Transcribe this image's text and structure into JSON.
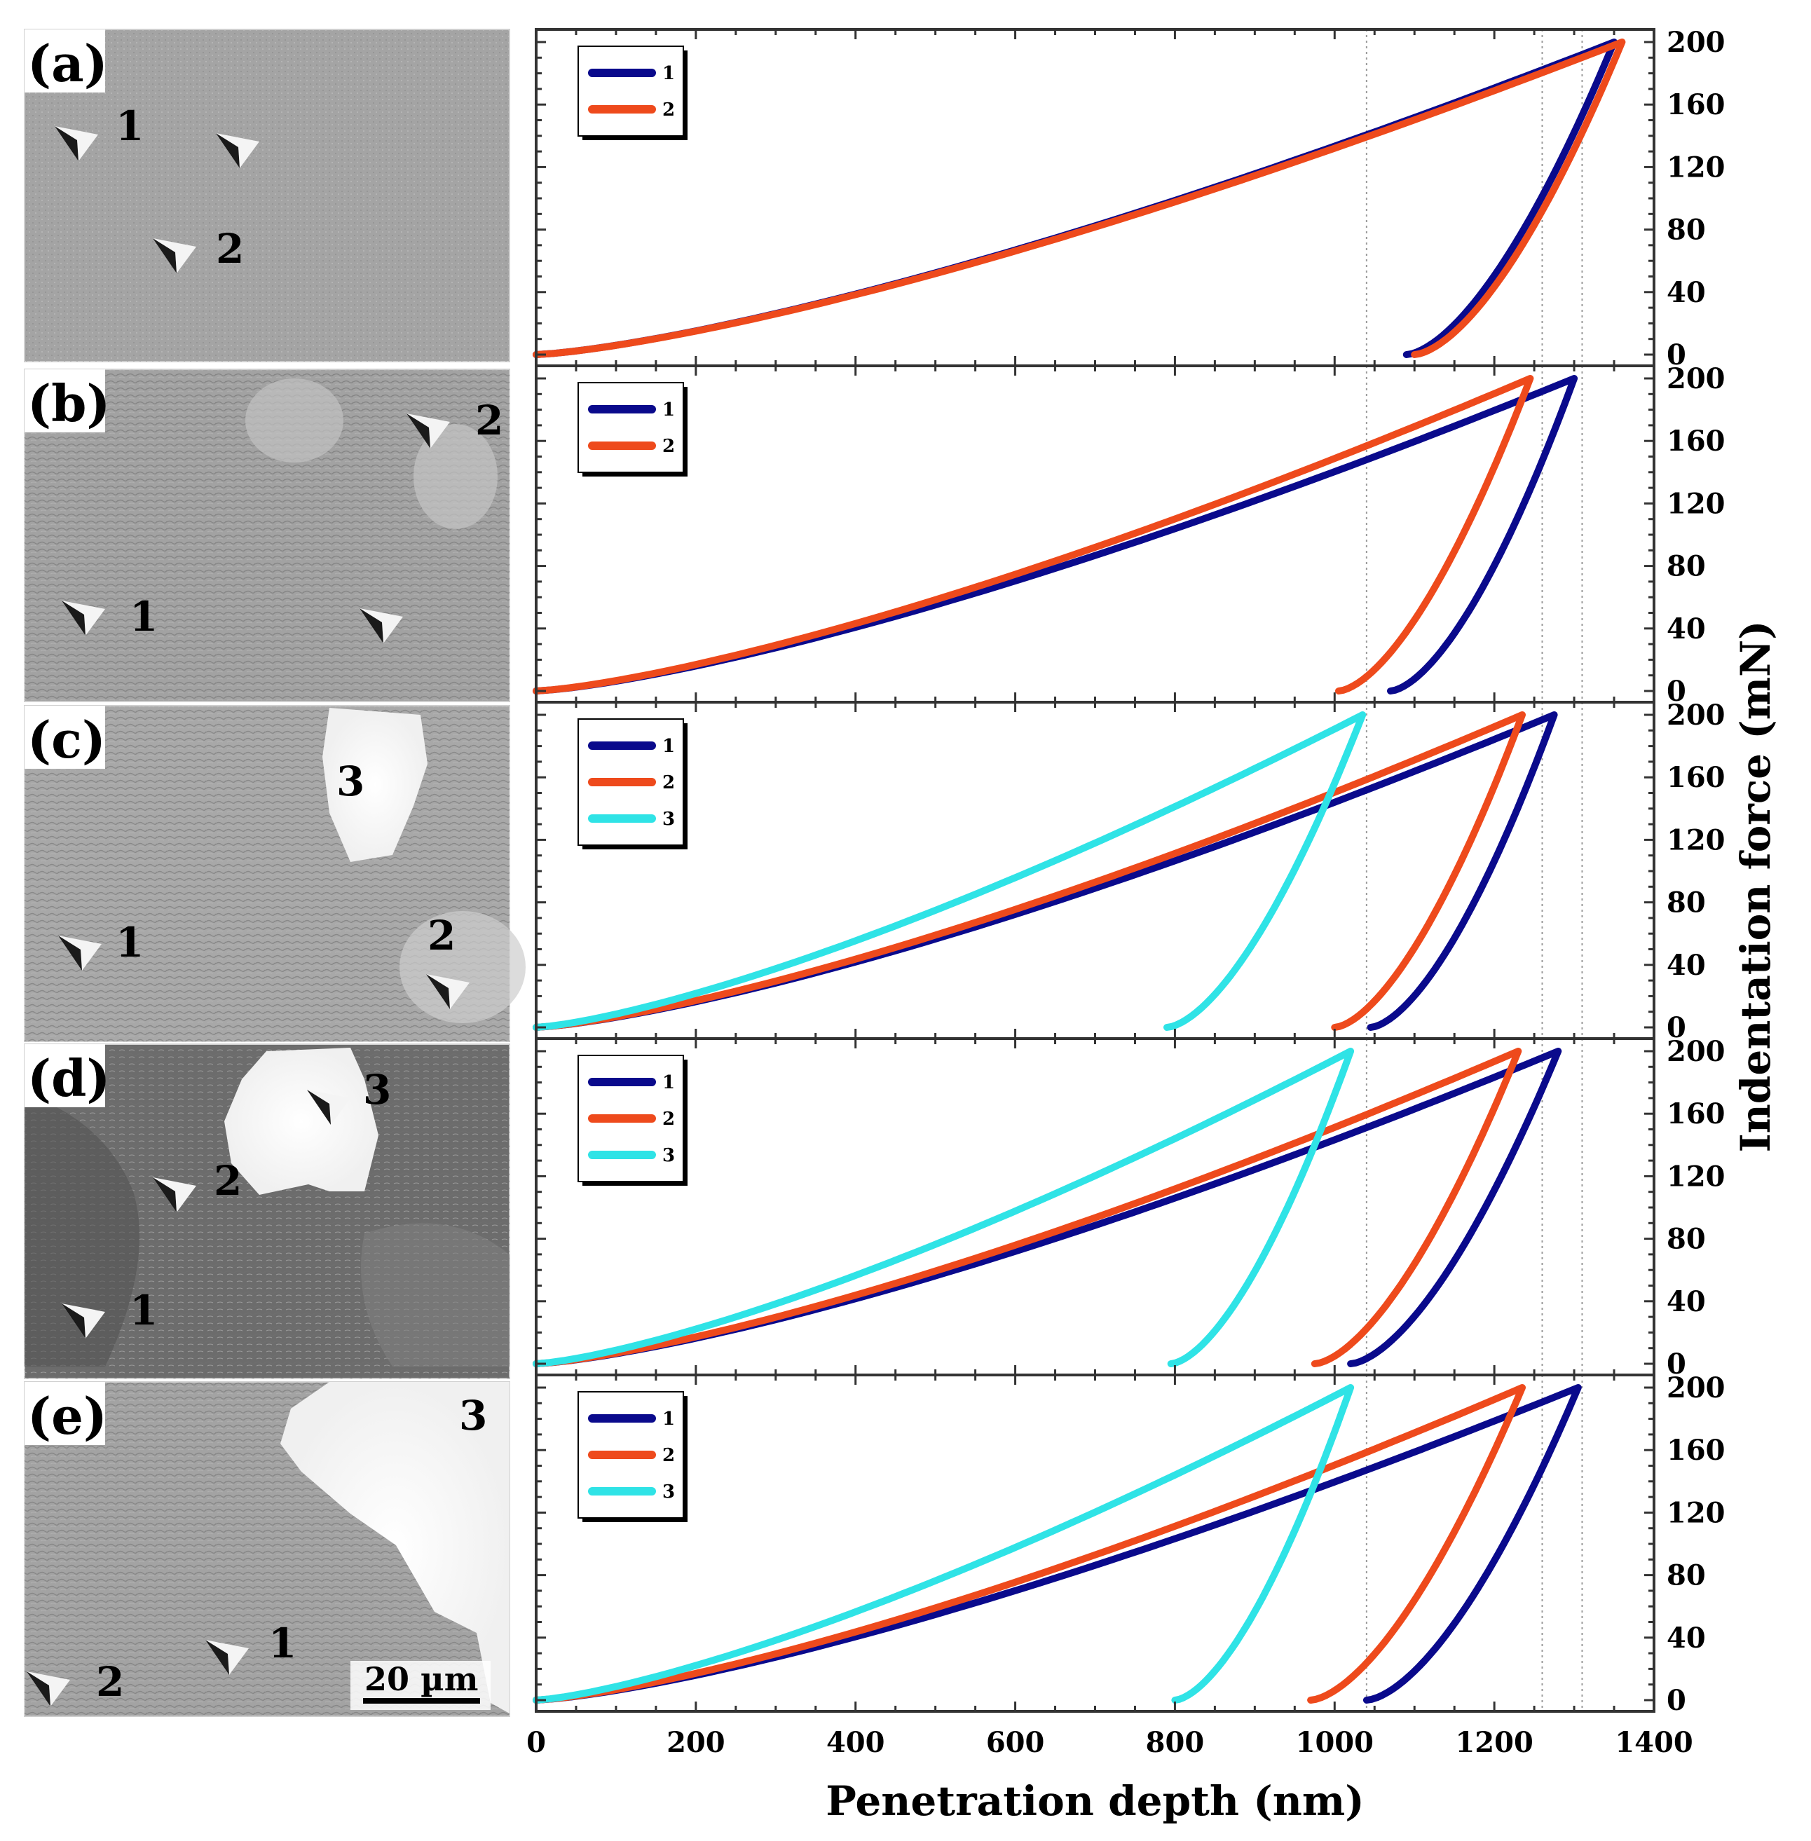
{
  "chart_data": {
    "type": "line",
    "xlabel": "Penetration depth (nm)",
    "ylabel": "Indentation force (mN)",
    "xlim": [
      0,
      1400
    ],
    "ylim": [
      0,
      200
    ],
    "x_ticks": [
      "0",
      "200",
      "400",
      "600",
      "800",
      "1000",
      "1200",
      "1400"
    ],
    "y_ticks": [
      "0",
      "40",
      "80",
      "120",
      "160",
      "200"
    ],
    "reference_lines_x": [
      1040,
      1260,
      1310
    ],
    "colors": {
      "1": "#0a0a8c",
      "2": "#ee4a1c",
      "3": "#2fe3e6"
    },
    "panels": [
      {
        "label": "(a)",
        "micro_labels": [
          "1",
          "2"
        ],
        "series": [
          {
            "name": "1",
            "max_depth": 1350,
            "residual_depth": 1090
          },
          {
            "name": "2",
            "max_depth": 1360,
            "residual_depth": 1100
          }
        ]
      },
      {
        "label": "(b)",
        "micro_labels": [
          "1",
          "2"
        ],
        "series": [
          {
            "name": "1",
            "max_depth": 1300,
            "residual_depth": 1070
          },
          {
            "name": "2",
            "max_depth": 1245,
            "residual_depth": 1005
          }
        ]
      },
      {
        "label": "(c)",
        "micro_labels": [
          "1",
          "2",
          "3"
        ],
        "series": [
          {
            "name": "1",
            "max_depth": 1275,
            "residual_depth": 1045
          },
          {
            "name": "2",
            "max_depth": 1235,
            "residual_depth": 1000
          },
          {
            "name": "3",
            "max_depth": 1035,
            "residual_depth": 790
          }
        ]
      },
      {
        "label": "(d)",
        "micro_labels": [
          "1",
          "2",
          "3"
        ],
        "series": [
          {
            "name": "1",
            "max_depth": 1280,
            "residual_depth": 1020
          },
          {
            "name": "2",
            "max_depth": 1230,
            "residual_depth": 975
          },
          {
            "name": "3",
            "max_depth": 1020,
            "residual_depth": 795
          }
        ]
      },
      {
        "label": "(e)",
        "micro_labels": [
          "1",
          "2",
          "3"
        ],
        "scale_bar": "20 µm",
        "series": [
          {
            "name": "1",
            "max_depth": 1305,
            "residual_depth": 1040
          },
          {
            "name": "2",
            "max_depth": 1235,
            "residual_depth": 970
          },
          {
            "name": "3",
            "max_depth": 1020,
            "residual_depth": 800
          }
        ]
      }
    ]
  }
}
